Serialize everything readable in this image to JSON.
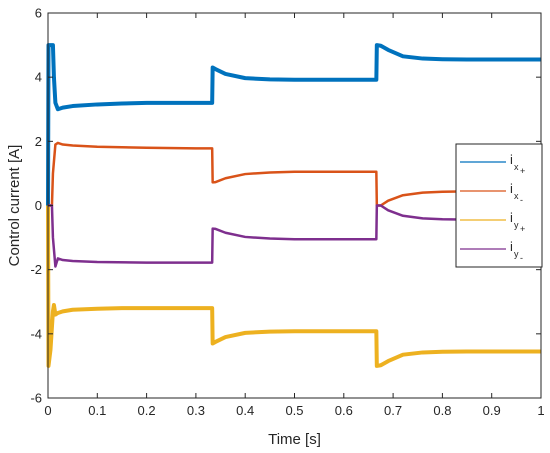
{
  "chart_data": {
    "type": "line",
    "xlabel": "Time [s]",
    "ylabel": "Control current [A]",
    "xlim": [
      0,
      1
    ],
    "ylim": [
      -6,
      6
    ],
    "xticks": [
      0,
      0.1,
      0.2,
      0.3,
      0.4,
      0.5,
      0.6,
      0.7,
      0.8,
      0.9,
      1
    ],
    "yticks": [
      -6,
      -4,
      -2,
      0,
      2,
      4,
      6
    ],
    "xtick_labels": [
      "0",
      "0.1",
      "0.2",
      "0.3",
      "0.4",
      "0.5",
      "0.6",
      "0.7",
      "0.8",
      "0.9",
      "1"
    ],
    "ytick_labels": [
      "-6",
      "-4",
      "-2",
      "0",
      "2",
      "4",
      "6"
    ],
    "grid": false,
    "legend_position": "right",
    "series": [
      {
        "name": "i",
        "subscript": "x",
        "sub2": "+",
        "color": "#0072BD",
        "x": [
          0,
          0.001,
          0.005,
          0.01,
          0.012,
          0.015,
          0.02,
          0.03,
          0.05,
          0.1,
          0.15,
          0.2,
          0.25,
          0.3,
          0.333,
          0.334,
          0.34,
          0.36,
          0.4,
          0.45,
          0.5,
          0.55,
          0.6,
          0.666,
          0.667,
          0.675,
          0.69,
          0.72,
          0.76,
          0.8,
          0.85,
          0.9,
          1.0
        ],
        "y": [
          0,
          5.0,
          5.0,
          5.0,
          4.0,
          3.2,
          3.0,
          3.05,
          3.1,
          3.15,
          3.18,
          3.2,
          3.2,
          3.2,
          3.2,
          4.3,
          4.25,
          4.1,
          3.97,
          3.93,
          3.92,
          3.92,
          3.92,
          3.92,
          5.0,
          4.98,
          4.85,
          4.65,
          4.58,
          4.56,
          4.55,
          4.55,
          4.55
        ],
        "width": 4
      },
      {
        "name": "i",
        "subscript": "x",
        "sub2": "-",
        "color": "#D95319",
        "x": [
          0,
          0.008,
          0.01,
          0.015,
          0.02,
          0.03,
          0.05,
          0.1,
          0.2,
          0.3,
          0.333,
          0.334,
          0.34,
          0.36,
          0.4,
          0.45,
          0.5,
          0.6,
          0.666,
          0.667,
          0.675,
          0.69,
          0.72,
          0.76,
          0.8,
          0.9,
          1.0
        ],
        "y": [
          0,
          0,
          1.0,
          1.9,
          1.95,
          1.9,
          1.87,
          1.83,
          1.8,
          1.78,
          1.78,
          0.72,
          0.73,
          0.85,
          0.98,
          1.03,
          1.05,
          1.05,
          1.05,
          0.0,
          0.0,
          0.15,
          0.32,
          0.4,
          0.43,
          0.45,
          0.45
        ],
        "width": 2.5
      },
      {
        "name": "i",
        "subscript": "y",
        "sub2": "+",
        "color": "#EDB120",
        "x": [
          0,
          0.001,
          0.005,
          0.01,
          0.012,
          0.015,
          0.02,
          0.03,
          0.05,
          0.1,
          0.15,
          0.2,
          0.25,
          0.3,
          0.333,
          0.334,
          0.34,
          0.36,
          0.4,
          0.45,
          0.5,
          0.55,
          0.6,
          0.666,
          0.667,
          0.675,
          0.69,
          0.72,
          0.76,
          0.8,
          0.85,
          0.9,
          1.0
        ],
        "y": [
          0,
          -5.0,
          -4.5,
          -3.3,
          -3.1,
          -3.4,
          -3.35,
          -3.3,
          -3.25,
          -3.22,
          -3.2,
          -3.2,
          -3.2,
          -3.2,
          -3.2,
          -4.3,
          -4.25,
          -4.1,
          -3.97,
          -3.93,
          -3.92,
          -3.92,
          -3.92,
          -3.92,
          -5.0,
          -4.98,
          -4.85,
          -4.65,
          -4.58,
          -4.56,
          -4.55,
          -4.55,
          -4.55
        ],
        "width": 4
      },
      {
        "name": "i",
        "subscript": "y",
        "sub2": "-",
        "color": "#7E2F8E",
        "x": [
          0,
          0.008,
          0.01,
          0.015,
          0.02,
          0.03,
          0.05,
          0.1,
          0.2,
          0.3,
          0.333,
          0.334,
          0.34,
          0.36,
          0.4,
          0.45,
          0.5,
          0.6,
          0.666,
          0.667,
          0.675,
          0.69,
          0.72,
          0.76,
          0.8,
          0.9,
          1.0
        ],
        "y": [
          0,
          0,
          -1.0,
          -1.9,
          -1.65,
          -1.7,
          -1.73,
          -1.76,
          -1.78,
          -1.78,
          -1.78,
          -0.72,
          -0.73,
          -0.85,
          -0.98,
          -1.03,
          -1.05,
          -1.05,
          -1.05,
          0.0,
          0.0,
          -0.15,
          -0.32,
          -0.4,
          -0.43,
          -0.45,
          -0.45
        ],
        "width": 2.5
      }
    ]
  }
}
